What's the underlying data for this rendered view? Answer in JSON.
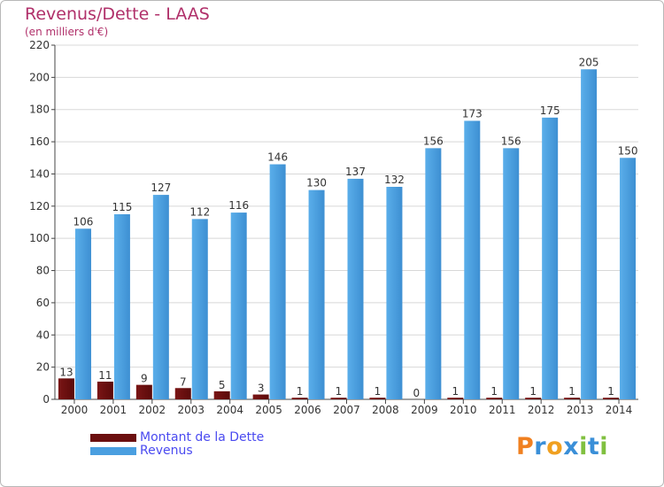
{
  "header": {
    "title": "Revenus/Dette - LAAS",
    "subtitle": "(en milliers d'€)"
  },
  "colors": {
    "dette": "#6b0f0f",
    "revenus": "#4a9fe0",
    "title": "#b0306a",
    "legend_text": "#4a4af0",
    "grid": "#d8d8d8"
  },
  "legend": [
    {
      "label": "Montant de la Dette",
      "color": "#6b0f0f"
    },
    {
      "label": "Revenus",
      "color": "#4a9fe0"
    }
  ],
  "logo": {
    "text": "Proxiti",
    "letters": [
      {
        "ch": "P",
        "color": "#f08020"
      },
      {
        "ch": "r",
        "color": "#3a8fd8"
      },
      {
        "ch": "o",
        "color": "#f0a020"
      },
      {
        "ch": "x",
        "color": "#3a8fd8"
      },
      {
        "ch": "i",
        "color": "#80c040"
      },
      {
        "ch": "t",
        "color": "#3a8fd8"
      },
      {
        "ch": "i",
        "color": "#80c040"
      }
    ]
  },
  "chart_data": {
    "type": "bar",
    "categories": [
      "2000",
      "2001",
      "2002",
      "2003",
      "2004",
      "2005",
      "2006",
      "2007",
      "2008",
      "2009",
      "2010",
      "2011",
      "2012",
      "2013",
      "2014"
    ],
    "series": [
      {
        "name": "Montant de la Dette",
        "values": [
          13,
          11,
          9,
          7,
          5,
          3,
          1,
          1,
          1,
          0,
          1,
          1,
          1,
          1,
          1
        ]
      },
      {
        "name": "Revenus",
        "values": [
          106,
          115,
          127,
          112,
          116,
          146,
          130,
          137,
          132,
          156,
          173,
          156,
          175,
          205,
          150
        ]
      }
    ],
    "ylim": [
      0,
      220
    ],
    "yticks": [
      0,
      20,
      40,
      60,
      80,
      100,
      120,
      140,
      160,
      180,
      200,
      220
    ],
    "grid": true,
    "legend_position": "bottom-left"
  }
}
